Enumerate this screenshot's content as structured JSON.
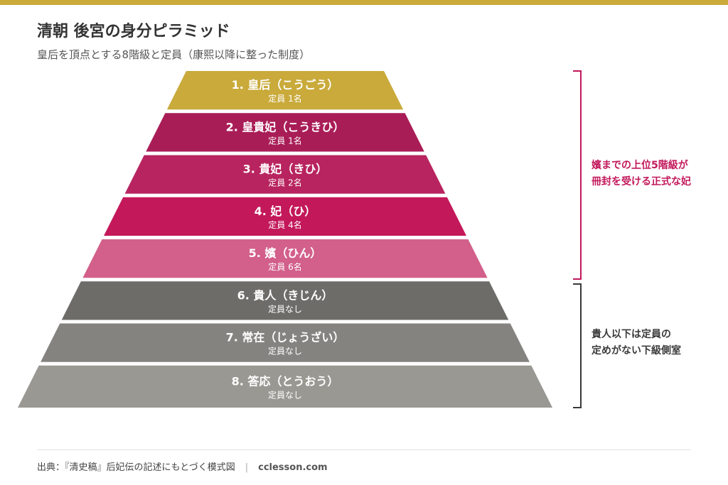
{
  "header": {
    "title": "清朝 後宮の身分ピラミッド",
    "subtitle": "皇后を頂点とする8階級と定員（康熙以降に整った制度）"
  },
  "colors": {
    "accent_gold": "#c9aa3b",
    "upper_magenta": "#c2185b",
    "lower_gray": "#6e6c69"
  },
  "pyramid": {
    "tiers": [
      {
        "name": "1. 皇后（こうごう）",
        "quota": "定員 1名",
        "color": "#c9aa3b"
      },
      {
        "name": "2. 皇貴妃（こうきひ）",
        "quota": "定員 1名",
        "color": "#a91d57"
      },
      {
        "name": "3. 貴妃（きひ）",
        "quota": "定員 2名",
        "color": "#b8245f"
      },
      {
        "name": "4. 妃（ひ）",
        "quota": "定員 4名",
        "color": "#c3185a"
      },
      {
        "name": "5. 嬪（ひん）",
        "quota": "定員 6名",
        "color": "#d2608a"
      },
      {
        "name": "6. 貴人（きじん）",
        "quota": "定員なし",
        "color": "#6e6c69"
      },
      {
        "name": "7. 常在（じょうざい）",
        "quota": "定員なし",
        "color": "#858380"
      },
      {
        "name": "8. 答応（とうおう）",
        "quota": "定員なし",
        "color": "#9a9893"
      }
    ]
  },
  "brackets": {
    "upper": {
      "line1": "嬪までの上位5階級が",
      "line2": "冊封を受ける正式な妃",
      "color": "#c2185b"
    },
    "lower": {
      "line1": "貴人以下は定員の",
      "line2": "定めがない下級側室",
      "color": "#3a3a3a"
    }
  },
  "footer": {
    "source": "出典：『清史稿』后妃伝の記述にもとづく模式図",
    "separator": "|",
    "site": "cclesson.com"
  }
}
